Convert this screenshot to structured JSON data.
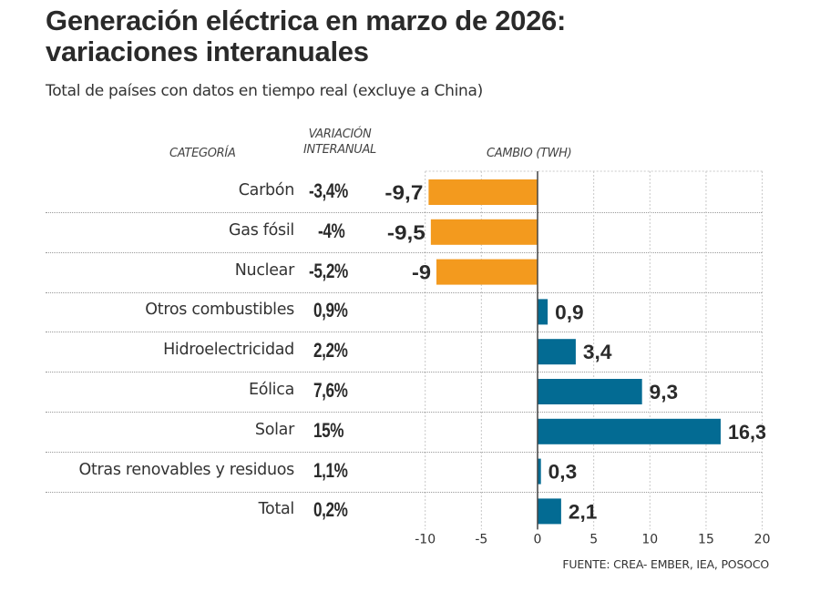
{
  "title_line1": "Generación eléctrica en marzo de 2026:",
  "title_line2": "variaciones interanuales",
  "subtitle": "Total de países con datos en tiempo real (excluye a China)",
  "headers": {
    "category": "CATEGORÍA",
    "variation_line1": "VARIACIÓN",
    "variation_line2": "INTERANUAL",
    "change": "CAMBIO (TWH)"
  },
  "source": "FUENTE: CREA- EMBER, IEA, POSOCO",
  "colors": {
    "negative": "#f39a1e",
    "positive": "#036b93",
    "text": "#2a2a2a",
    "grid": "#c8c8c8"
  },
  "chart_data": {
    "type": "bar",
    "orientation": "horizontal",
    "title": "Generación eléctrica en marzo de 2026: variaciones interanuales",
    "subtitle": "Total de países con datos en tiempo real (excluye a China)",
    "xlabel": "CAMBIO (TWH)",
    "ylabel": "CATEGORÍA",
    "xlim": [
      -10,
      20
    ],
    "xticks": [
      -10,
      -5,
      0,
      5,
      10,
      15,
      20
    ],
    "xtick_labels": [
      "-10",
      "-5",
      "0",
      "5",
      "10",
      "15",
      "20"
    ],
    "grid": true,
    "categories": [
      "Carbón",
      "Gas fósil",
      "Nuclear",
      "Otros combustibles",
      "Hidroelectricidad",
      "Eólica",
      "Solar",
      "Otras renovables y residuos",
      "Total"
    ],
    "values": [
      -9.7,
      -9.5,
      -9,
      0.9,
      3.4,
      9.3,
      16.3,
      0.3,
      2.1
    ],
    "value_labels": [
      "-9,7",
      "-9,5",
      "-9",
      "0,9",
      "3,4",
      "9,3",
      "16,3",
      "0,3",
      "2,1"
    ],
    "variation_pct": [
      "-3,4%",
      "-4%",
      "-5,2%",
      "0,9%",
      "2,2%",
      "7,6%",
      "15%",
      "1,1%",
      "0,2%"
    ]
  }
}
